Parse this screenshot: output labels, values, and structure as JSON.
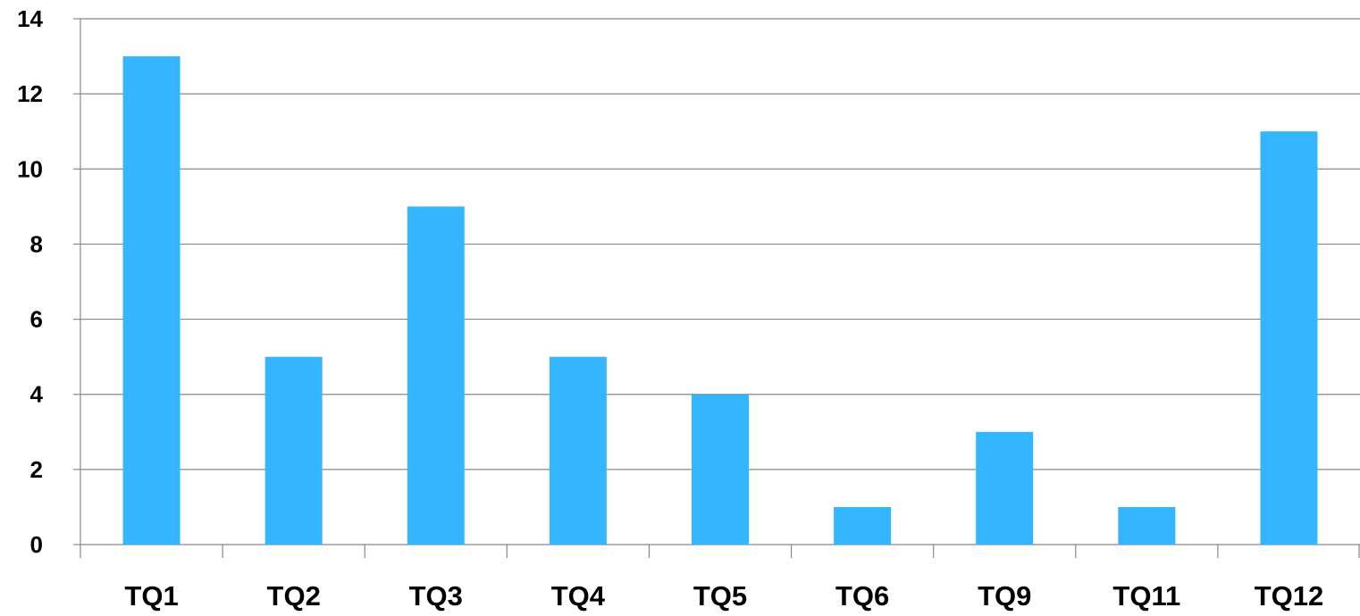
{
  "chart_data": {
    "type": "bar",
    "categories": [
      "TQ1",
      "TQ2",
      "TQ3",
      "TQ4",
      "TQ5",
      "TQ6",
      "TQ9",
      "TQ11",
      "TQ12"
    ],
    "values": [
      13,
      5,
      9,
      5,
      4,
      1,
      3,
      1,
      11
    ],
    "ylim": [
      0,
      14
    ],
    "yticks": [
      0,
      2,
      4,
      6,
      8,
      10,
      12,
      14
    ],
    "grid": true,
    "legend": "none",
    "colors": {
      "bar": "#33B5FF",
      "grid": "#888888",
      "axis": "#888888",
      "text": "#000000"
    }
  }
}
